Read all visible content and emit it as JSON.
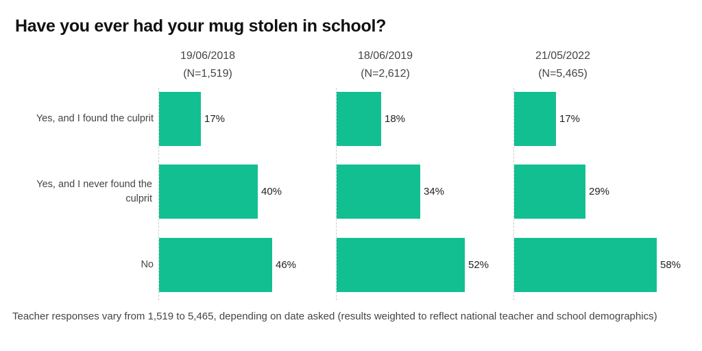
{
  "chart_data": {
    "type": "bar",
    "title": "Have you ever had your mug stolen in school?",
    "categories": [
      "Yes, and I found the culprit",
      "Yes, and I never found the culprit",
      "No"
    ],
    "panels": [
      {
        "date": "19/06/2018",
        "n": "(N=1,519)",
        "values": [
          17,
          40,
          46
        ],
        "labels": [
          "17%",
          "40%",
          "46%"
        ]
      },
      {
        "date": "18/06/2019",
        "n": "(N=2,612)",
        "values": [
          18,
          34,
          52
        ],
        "labels": [
          "18%",
          "34%",
          "52%"
        ]
      },
      {
        "date": "21/05/2022",
        "n": "(N=5,465)",
        "values": [
          17,
          29,
          58
        ],
        "labels": [
          "17%",
          "29%",
          "58%"
        ]
      }
    ],
    "xlim": [
      0,
      100
    ],
    "bar_color": "#12bf91",
    "footnote": "Teacher responses vary from 1,519 to 5,465, depending on date asked (results weighted to reflect national teacher and school demographics)"
  }
}
